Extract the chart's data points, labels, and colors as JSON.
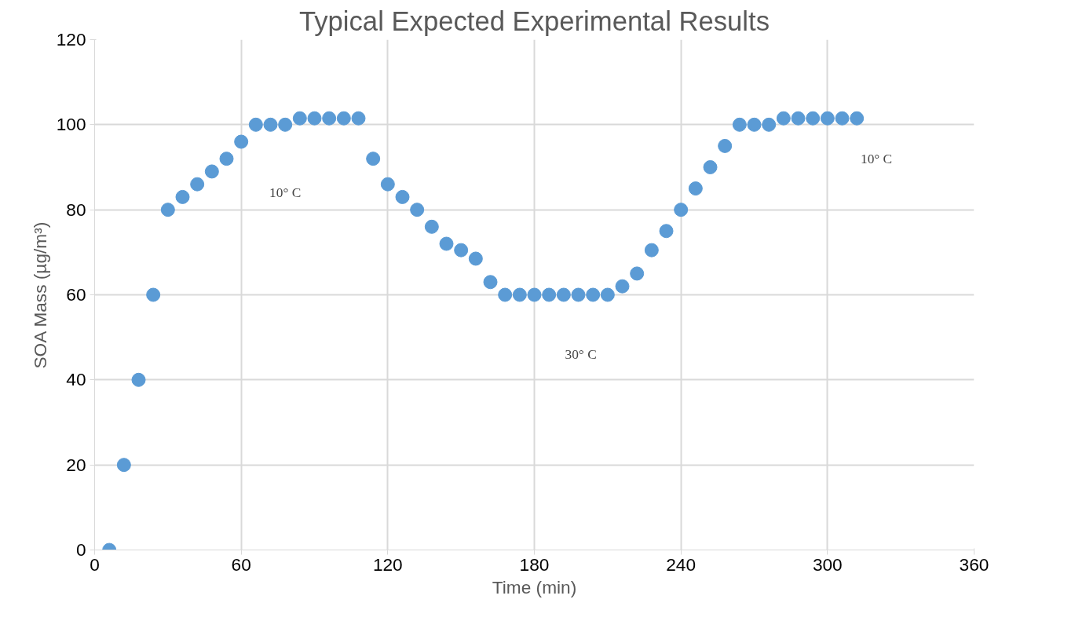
{
  "chart_data": {
    "type": "scatter",
    "title": "Typical Expected Experimental Results",
    "xlabel": "Time (min)",
    "ylabel": "SOA Mass (µg/m³)",
    "x": [
      6,
      12,
      18,
      24,
      30,
      36,
      42,
      48,
      54,
      60,
      66,
      72,
      78,
      84,
      90,
      96,
      102,
      108,
      114,
      120,
      126,
      132,
      138,
      144,
      150,
      156,
      162,
      168,
      174,
      180,
      186,
      192,
      198,
      204,
      210,
      216,
      222,
      228,
      234,
      240,
      246,
      252,
      258,
      264,
      270,
      276,
      282,
      288,
      294,
      300,
      306,
      312
    ],
    "series": [
      {
        "color": "#5b9bd5",
        "values": [
          0,
          20,
          40,
          60,
          80,
          83,
          86,
          89,
          92,
          96,
          100,
          100,
          100,
          101.5,
          101.5,
          101.5,
          101.5,
          101.5,
          92,
          86,
          83,
          80,
          76,
          72,
          70.5,
          68.5,
          63,
          60,
          60,
          60,
          60,
          60,
          60,
          60,
          60,
          62,
          65,
          70.5,
          75,
          80,
          85,
          90,
          95,
          100,
          100,
          100,
          101.5,
          101.5,
          101.5,
          101.5,
          101.5,
          101.5
        ]
      }
    ],
    "annotations": [
      {
        "text": "10° C",
        "x": 78,
        "y": 84
      },
      {
        "text": "30° C",
        "x": 199,
        "y": 46
      },
      {
        "text": "10° C",
        "x": 320,
        "y": 92
      }
    ],
    "xlim": [
      0,
      360
    ],
    "xticks": [
      0,
      60,
      120,
      180,
      240,
      300,
      360
    ],
    "ylim": [
      0,
      120
    ],
    "yticks": [
      0,
      20,
      40,
      60,
      80,
      100,
      120
    ],
    "grid": true,
    "marker": "circle"
  }
}
